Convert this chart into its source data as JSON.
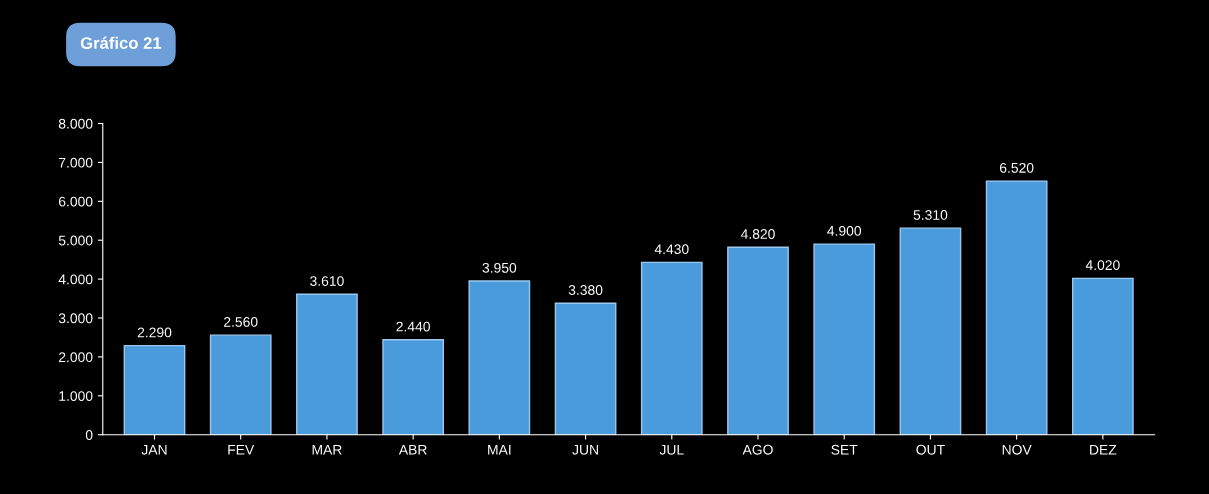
{
  "chart_data": {
    "type": "bar",
    "title": "Gráfico 21",
    "categories": [
      "JAN",
      "FEV",
      "MAR",
      "ABR",
      "MAI",
      "JUN",
      "JUL",
      "AGO",
      "SET",
      "OUT",
      "NOV",
      "DEZ"
    ],
    "values": [
      2290,
      2560,
      3610,
      2440,
      3950,
      3380,
      4430,
      4820,
      4900,
      5310,
      6520,
      4020
    ],
    "color": "#4a9bdc",
    "ylim": [
      0,
      8000
    ],
    "yticks": [
      0,
      {
        "value": 1000,
        "label": "1.000"
      },
      {
        "value": 2000,
        "label": "2.000"
      },
      {
        "value": 3000,
        "label": "3.000"
      },
      {
        "value": 4000,
        "label": "4.000"
      },
      {
        "value": 5000,
        "label": "5.000"
      },
      {
        "value": 6000,
        "label": "6.000"
      },
      {
        "value": 7000,
        "label": "7.000"
      },
      {
        "value": 8000,
        "label": "8.000"
      }
    ],
    "value_labels": [
      "2.290",
      "2.560",
      "3.610",
      "2.440",
      "3.950",
      "3.380",
      "4.430",
      "4.820",
      "4.900",
      "5.310",
      "6.520",
      "4.020"
    ],
    "grid": false,
    "legend": false
  }
}
